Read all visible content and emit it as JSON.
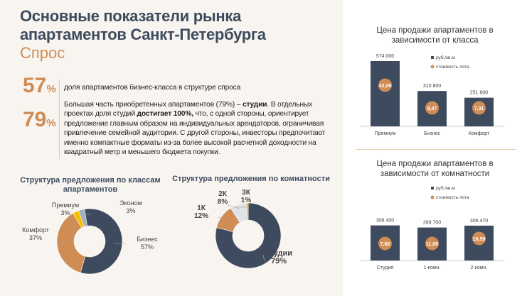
{
  "header": {
    "title_line1": "Основные показатели рынка",
    "title_line2": "апартаментов Санкт-Петербурга",
    "subtitle": "Спрос"
  },
  "stats": [
    {
      "value": "57",
      "unit": "%",
      "text": "доля апартаментов бизнес-класса в структуре спроса"
    },
    {
      "value": "79",
      "unit": "%",
      "text_parts": [
        "Большая часть приобретенных апартаментов (79%) – ",
        "студии",
        ". В отдельных проектах доля студий ",
        "достигает 100%,",
        " что, с одной стороны, ориентирует предложение главным образом на индивидуальных арендаторов, ограничивая привлечение семейной аудитории. С другой стороны, инвесторы предпочитают именно компактные форматы из-за более высокой расчетной доходности на квадратный метр и меньшего бюджета покупки."
      ]
    }
  ],
  "colors": {
    "dark": "#3e4b5e",
    "orange": "#d08c55",
    "yellow": "#f5c000",
    "lightblue": "#9fb0c2",
    "lightgrey": "#dfe2e8"
  },
  "chart_data": [
    {
      "type": "pie",
      "title": "Структура предложения по классам апартаментов",
      "title_lines": [
        "Структура предложения по классам",
        "апартаментов"
      ],
      "slices": [
        {
          "label": "Бизнес",
          "value": 57,
          "pct": "57%"
        },
        {
          "label": "Комфорт",
          "value": 37,
          "pct": "37%"
        },
        {
          "label": "Премиум",
          "value": 3,
          "pct": "3%"
        },
        {
          "label": "Эконом",
          "value": 3,
          "pct": "3%"
        }
      ]
    },
    {
      "type": "pie",
      "title": "Структура предложения по комнатности",
      "slices": [
        {
          "label": "студии",
          "value": 79,
          "pct": "79%"
        },
        {
          "label": "1К",
          "value": 12,
          "pct": "12%"
        },
        {
          "label": "2К",
          "value": 8,
          "pct": "8%"
        },
        {
          "label": "3К",
          "value": 1,
          "pct": "1%"
        }
      ]
    },
    {
      "type": "bar",
      "title": "Цена продажи апартаментов в зависимости от класса",
      "title_lines": [
        "Цена продажи апартаментов в",
        "зависимости от класса"
      ],
      "categories": [
        "Премиум",
        "Бизнес",
        "Комфорт"
      ],
      "series": [
        {
          "name": "руб./кв.м",
          "values": [
            574000,
            310800,
            251800
          ],
          "labels": [
            "574 000",
            "310 800",
            "251 800"
          ]
        },
        {
          "name": "стоимость лота",
          "values": [
            42.06,
            8.47,
            7.31
          ],
          "labels": [
            "42,06",
            "8,47",
            "7,31"
          ]
        }
      ]
    },
    {
      "type": "bar",
      "title": "Цена продажи апартаментов в зависимости от комнатности",
      "title_lines": [
        "Цена продажи апартаментов в",
        "зависимости от комнатности"
      ],
      "categories": [
        "Студия",
        "1-комн.",
        "2-комн."
      ],
      "series": [
        {
          "name": "руб./кв.м",
          "values": [
            308400,
            289700,
            306470
          ],
          "labels": [
            "308 400",
            "289 700",
            "306 470"
          ]
        },
        {
          "name": "стоимость лота",
          "values": [
            7.66,
            11.06,
            16.59
          ],
          "labels": [
            "7,66",
            "11,06",
            "16,59"
          ]
        }
      ]
    }
  ]
}
